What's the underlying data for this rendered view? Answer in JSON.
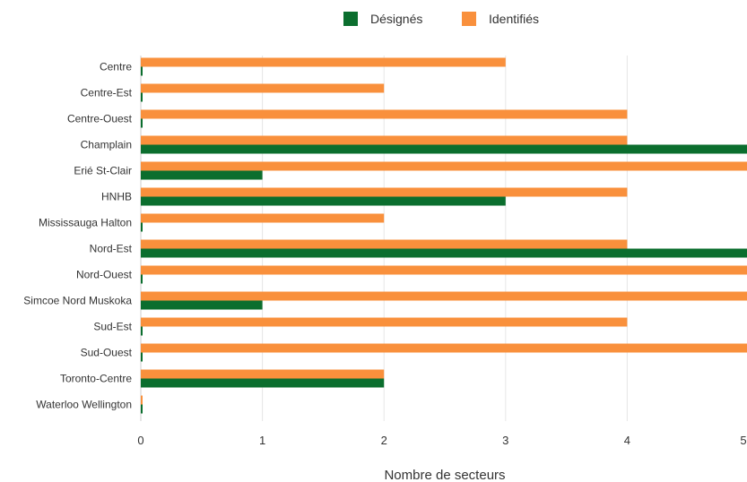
{
  "chart_data": {
    "type": "bar",
    "orientation": "horizontal",
    "title": "",
    "xlabel": "Nombre de secteurs",
    "ylabel": "",
    "xlim": [
      0,
      5
    ],
    "xticks": [
      "0",
      "1",
      "2",
      "3",
      "4",
      "5"
    ],
    "grid": "vertical",
    "legend_position": "top",
    "categories": [
      "Centre",
      "Centre-Est",
      "Centre-Ouest",
      "Champlain",
      "Erié St-Clair",
      "HNHB",
      "Mississauga Halton",
      "Nord-Est",
      "Nord-Ouest",
      "Simcoe Nord Muskoka",
      "Sud-Est",
      "Sud-Ouest",
      "Toronto-Centre",
      "Waterloo Wellington"
    ],
    "series": [
      {
        "name": "Désignés",
        "color": "#0b6e2e",
        "values": [
          0,
          0,
          0,
          5,
          1,
          3,
          0,
          5,
          0,
          1,
          0,
          0,
          2,
          0
        ]
      },
      {
        "name": "Identifiés",
        "color": "#f9903c",
        "values": [
          3,
          2,
          4,
          4,
          5,
          4,
          2,
          4,
          5,
          5,
          4,
          5,
          2,
          0
        ]
      }
    ]
  }
}
